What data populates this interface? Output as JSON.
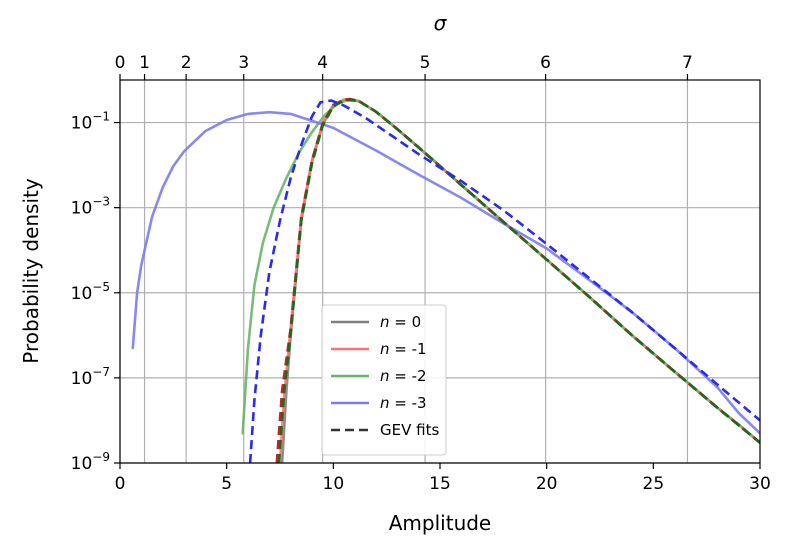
{
  "chart_data": {
    "type": "line",
    "xlabel": "Amplitude",
    "ylabel": "Probability density",
    "top_xlabel": "σ",
    "xlim": [
      0,
      30
    ],
    "ylim": [
      1e-09,
      1.0
    ],
    "y_scale": "log",
    "grid": true,
    "legend_placement": "lower-center",
    "x_ticks": [
      0,
      5,
      10,
      15,
      20,
      25,
      30
    ],
    "x_tick_labels": [
      "0",
      "5",
      "10",
      "15",
      "20",
      "25",
      "30"
    ],
    "y_ticks": [
      1e-09,
      1e-07,
      1e-05,
      0.001,
      0.1
    ],
    "y_tick_labels": [
      {
        "base": "10",
        "exp": "−9"
      },
      {
        "base": "10",
        "exp": "−7"
      },
      {
        "base": "10",
        "exp": "−5"
      },
      {
        "base": "10",
        "exp": "−3"
      },
      {
        "base": "10",
        "exp": "−1"
      }
    ],
    "top_ticks": [
      {
        "label": "0",
        "amplitude": 0.0
      },
      {
        "label": "1",
        "amplitude": 1.15
      },
      {
        "label": "2",
        "amplitude": 3.1
      },
      {
        "label": "3",
        "amplitude": 5.8
      },
      {
        "label": "4",
        "amplitude": 9.5
      },
      {
        "label": "5",
        "amplitude": 14.3
      },
      {
        "label": "6",
        "amplitude": 19.95
      },
      {
        "label": "7",
        "amplitude": 26.6
      }
    ],
    "series": [
      {
        "name": "n =  0",
        "legend_label": {
          "var": "n",
          "eq": " = ",
          "val": " 0"
        },
        "color": "#808080",
        "style": "solid",
        "x": [
          7.6,
          7.8,
          8.0,
          8.5,
          9.0,
          9.5,
          10.0,
          10.5,
          10.8,
          11.2,
          12,
          13,
          14,
          15,
          16,
          18,
          20,
          22,
          24,
          26,
          28,
          29,
          30
        ],
        "y": [
          1e-09,
          5e-08,
          1e-06,
          0.0005,
          0.012,
          0.09,
          0.25,
          0.34,
          0.35,
          0.32,
          0.18,
          0.07,
          0.026,
          0.0095,
          0.0034,
          0.00045,
          6e-05,
          8e-06,
          1e-06,
          1.4e-07,
          2e-08,
          8e-09,
          3e-09
        ]
      },
      {
        "name": "n = -1",
        "legend_label": {
          "var": "n",
          "eq": " = ",
          "val": "-1"
        },
        "color": "#ff7070",
        "style": "solid",
        "x": [
          7.5,
          7.7,
          8.0,
          8.5,
          9.0,
          9.5,
          10.0,
          10.5,
          10.8,
          11.2,
          12,
          13,
          14,
          15,
          16,
          18,
          20,
          22,
          24,
          26,
          28,
          29,
          30
        ],
        "y": [
          1e-09,
          4e-08,
          1.5e-06,
          0.0006,
          0.013,
          0.095,
          0.26,
          0.345,
          0.355,
          0.32,
          0.18,
          0.07,
          0.026,
          0.0095,
          0.0034,
          0.00045,
          6e-05,
          8e-06,
          1e-06,
          1.4e-07,
          2e-08,
          8e-09,
          3e-09
        ]
      },
      {
        "name": "n = -2",
        "legend_label": {
          "var": "n",
          "eq": " = ",
          "val": "-2"
        },
        "color": "#6ab46a",
        "style": "solid",
        "x": [
          5.75,
          6.0,
          6.3,
          6.7,
          7.2,
          7.8,
          8.4,
          9.0,
          9.6,
          10.2,
          10.6,
          11.2,
          12,
          13,
          14,
          15,
          16,
          18,
          20,
          22,
          24,
          26,
          28,
          29,
          30
        ],
        "y": [
          5e-09,
          5e-07,
          1.5e-05,
          0.00015,
          0.001,
          0.005,
          0.02,
          0.06,
          0.15,
          0.28,
          0.33,
          0.32,
          0.18,
          0.07,
          0.026,
          0.0095,
          0.0034,
          0.00045,
          6e-05,
          8e-06,
          1e-06,
          1.4e-07,
          2e-08,
          8e-09,
          3e-09
        ]
      },
      {
        "name": "n = -3",
        "legend_label": {
          "var": "n",
          "eq": " = ",
          "val": "-3"
        },
        "color": "#7b7bf0",
        "style": "solid",
        "x": [
          0.6,
          0.8,
          1.0,
          1.5,
          2.0,
          2.5,
          3.0,
          4.0,
          5.0,
          6.0,
          7.0,
          8.0,
          10,
          12,
          14,
          16,
          18,
          20,
          22,
          24,
          26,
          28,
          29,
          30
        ],
        "y": [
          5e-07,
          1e-05,
          4.5e-05,
          0.0006,
          0.003,
          0.0095,
          0.021,
          0.063,
          0.115,
          0.16,
          0.175,
          0.16,
          0.075,
          0.022,
          0.006,
          0.0017,
          0.00042,
          0.00011,
          2e-05,
          3.5e-06,
          5e-07,
          6e-08,
          1.5e-08,
          5e-09
        ]
      },
      {
        "name": "GEV fits",
        "legend_label": {
          "var": "",
          "eq": "",
          "val": "GEV fits"
        },
        "color": "#333333",
        "style": "dashed",
        "is_legend_entry_only": true
      }
    ],
    "gev_fits": [
      {
        "color": "#333333",
        "x": [
          7.4,
          7.6,
          8.0,
          8.5,
          9.0,
          9.5,
          10.0,
          10.5,
          10.8,
          11.2,
          12,
          13,
          14,
          15,
          16,
          18,
          20,
          22,
          24,
          26,
          28,
          30
        ],
        "y": [
          1e-09,
          4e-08,
          1.2e-06,
          0.00055,
          0.012,
          0.09,
          0.25,
          0.34,
          0.35,
          0.32,
          0.18,
          0.07,
          0.026,
          0.0095,
          0.0034,
          0.00045,
          6e-05,
          8e-06,
          1e-06,
          1.4e-07,
          2e-08,
          3e-09
        ]
      },
      {
        "color": "#cc2020",
        "x": [
          7.35,
          7.6,
          8.0,
          8.5,
          9.0,
          9.5,
          10.0,
          10.5,
          10.8,
          11.2,
          12,
          13,
          14,
          15,
          16,
          18,
          20,
          22,
          24,
          26,
          28,
          30
        ],
        "y": [
          1e-09,
          5e-08,
          1.5e-06,
          0.0006,
          0.013,
          0.095,
          0.26,
          0.345,
          0.355,
          0.32,
          0.18,
          0.07,
          0.026,
          0.0095,
          0.0034,
          0.00045,
          6e-05,
          8e-06,
          1e-06,
          1.4e-07,
          2e-08,
          3e-09
        ]
      },
      {
        "color": "#1e6b1e",
        "x": [
          7.45,
          7.7,
          8.0,
          8.5,
          9.0,
          9.5,
          10.0,
          10.5,
          10.8,
          11.2,
          12,
          13,
          14,
          15,
          16,
          18,
          20,
          22,
          24,
          26,
          28,
          30
        ],
        "y": [
          1e-09,
          5e-08,
          1.1e-06,
          0.0005,
          0.011,
          0.085,
          0.24,
          0.33,
          0.345,
          0.32,
          0.18,
          0.07,
          0.026,
          0.0095,
          0.0034,
          0.00045,
          6e-05,
          8e-06,
          1e-06,
          1.4e-07,
          2e-08,
          3e-09
        ]
      },
      {
        "color": "#2a2af0",
        "x": [
          6.1,
          6.3,
          6.6,
          7.0,
          7.5,
          8.0,
          8.5,
          9.0,
          9.4,
          9.9,
          10.5,
          11.5,
          13,
          14,
          16,
          18,
          20,
          22,
          24,
          26,
          28,
          30
        ],
        "y": [
          1e-09,
          3e-08,
          1e-06,
          3e-05,
          0.0005,
          0.005,
          0.03,
          0.14,
          0.3,
          0.33,
          0.25,
          0.13,
          0.04,
          0.018,
          0.0042,
          0.00085,
          0.00014,
          2.2e-05,
          3.5e-06,
          5e-07,
          7e-08,
          1e-08
        ]
      }
    ]
  }
}
